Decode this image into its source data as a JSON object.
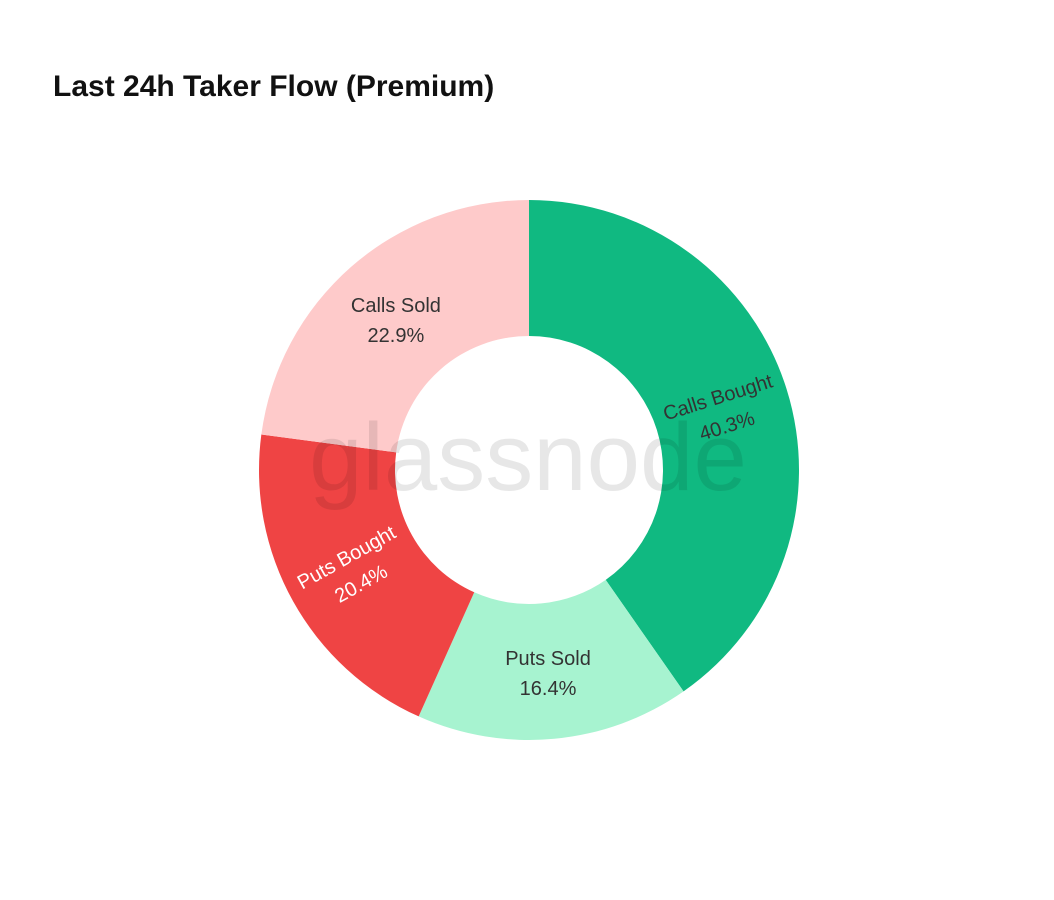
{
  "chart_data": {
    "type": "pie",
    "title": "Last 24h Taker Flow (Premium)",
    "hole": true,
    "watermark": "glassnode",
    "start": "top",
    "direction": "clockwise",
    "slices": [
      {
        "label": "Calls Bought",
        "value": 40.3,
        "text": "40.3%",
        "color": "#10b981",
        "text_color": "#333333",
        "orientation": "radial"
      },
      {
        "label": "Puts Sold",
        "value": 16.4,
        "text": "16.4%",
        "color": "#a7f3d0",
        "text_color": "#333333",
        "orientation": "horizontal"
      },
      {
        "label": "Puts Bought",
        "value": 20.4,
        "text": "20.4%",
        "color": "#ef4444",
        "text_color": "#ffffff",
        "orientation": "radial"
      },
      {
        "label": "Calls Sold",
        "value": 22.9,
        "text": "22.9%",
        "color": "#fecaca",
        "text_color": "#333333",
        "orientation": "horizontal"
      }
    ]
  }
}
